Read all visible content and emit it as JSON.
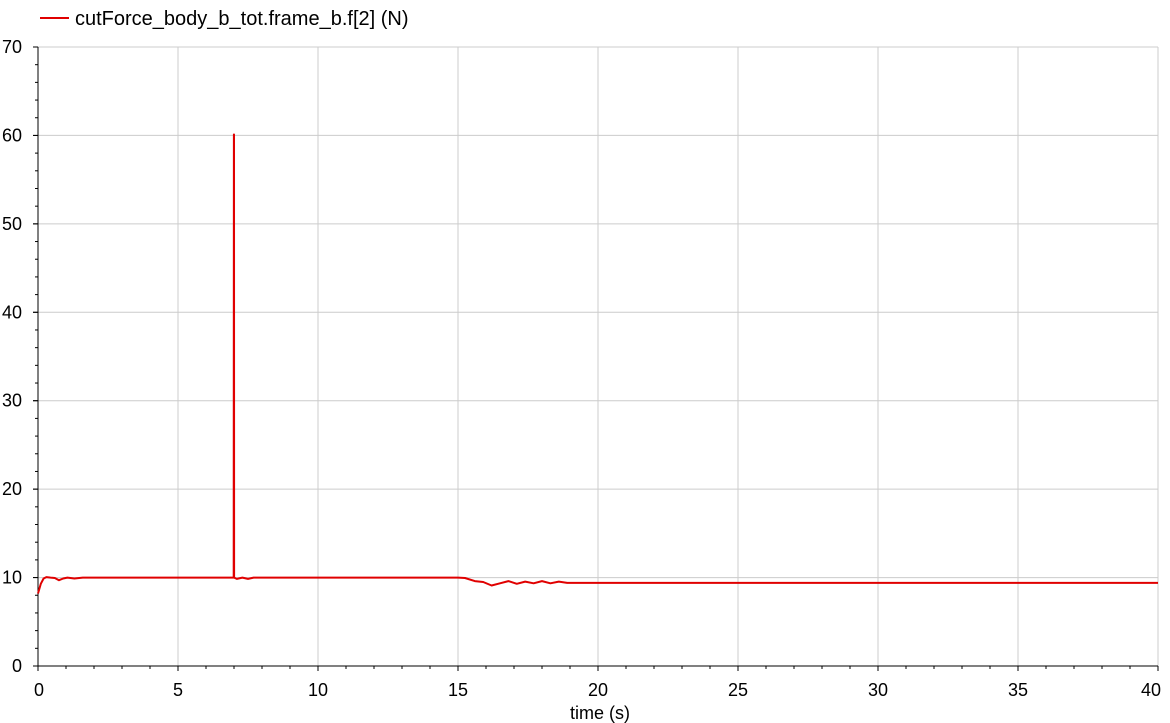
{
  "chart_data": {
    "type": "line",
    "xlabel": "time (s)",
    "ylabel": "",
    "xlim": [
      0,
      40
    ],
    "ylim": [
      0,
      70
    ],
    "x_ticks": [
      0,
      5,
      10,
      15,
      20,
      25,
      30,
      35,
      40
    ],
    "y_ticks": [
      0,
      10,
      20,
      30,
      40,
      50,
      60,
      70
    ],
    "grid": true,
    "legend_position": "top-left",
    "series": [
      {
        "name": "cutForce_body_b_tot.frame_b.f[2] (N)",
        "color": "#e00000",
        "x": [
          0,
          0.1,
          0.2,
          0.3,
          0.45,
          0.6,
          0.75,
          0.9,
          1.05,
          1.3,
          1.6,
          2.0,
          6.99,
          6.995,
          7.0,
          7.005,
          7.1,
          7.3,
          7.5,
          7.7,
          8.0,
          15.0,
          15.25,
          15.6,
          15.9,
          16.2,
          16.5,
          16.8,
          17.1,
          17.4,
          17.7,
          18.0,
          18.3,
          18.6,
          18.9,
          19.2,
          40
        ],
        "y": [
          8.2,
          9.3,
          9.9,
          10.05,
          10.0,
          9.95,
          9.7,
          9.9,
          10.0,
          9.9,
          10.0,
          10.0,
          10.0,
          60.1,
          60.1,
          10.0,
          9.85,
          10.0,
          9.85,
          10.0,
          10.0,
          10.0,
          9.95,
          9.6,
          9.5,
          9.1,
          9.35,
          9.6,
          9.3,
          9.55,
          9.35,
          9.6,
          9.35,
          9.55,
          9.4,
          9.4,
          9.4
        ]
      }
    ]
  }
}
